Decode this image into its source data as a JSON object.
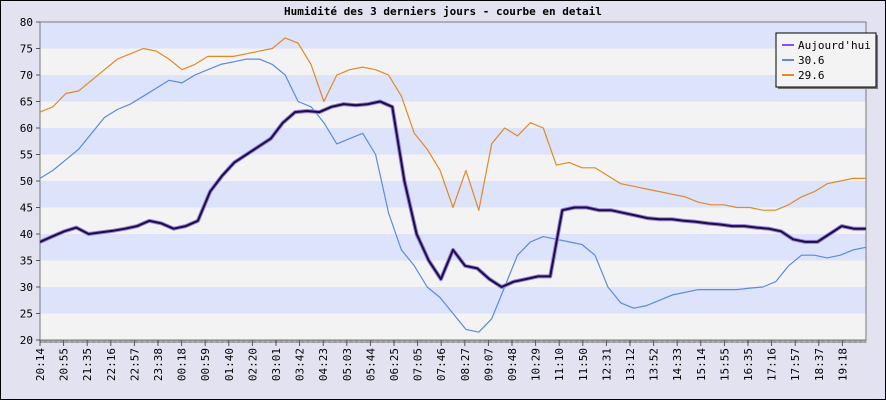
{
  "chart_data": {
    "type": "line",
    "title": "Humidité des 3 derniers jours - courbe en detail",
    "xlabel": "",
    "ylabel": "",
    "ylim": [
      20,
      80
    ],
    "yticks": [
      "20",
      "25",
      "30",
      "35",
      "40",
      "45",
      "50",
      "55",
      "60",
      "65",
      "70",
      "75",
      "80"
    ],
    "x_tick_labels": [
      "20:14",
      "20:55",
      "21:35",
      "22:16",
      "22:57",
      "23:38",
      "00:18",
      "00:59",
      "01:40",
      "02:20",
      "03:01",
      "03:42",
      "04:23",
      "05:03",
      "05:44",
      "06:25",
      "07:05",
      "07:46",
      "08:27",
      "09:07",
      "09:48",
      "10:29",
      "11:10",
      "11:50",
      "12:31",
      "13:12",
      "13:52",
      "14:33",
      "15:14",
      "15:55",
      "16:35",
      "17:16",
      "17:57",
      "18:37",
      "19:18"
    ],
    "grid": "horizontal bands",
    "legend_position": "top-right",
    "series": [
      {
        "name": "Aujourd'hui",
        "color": "#1a1040",
        "legend_color": "#8a4cf0",
        "values": [
          38.5,
          39.5,
          40.5,
          41.2,
          40.0,
          40.3,
          40.6,
          41.0,
          41.5,
          42.5,
          42.0,
          41.0,
          41.5,
          42.5,
          48.0,
          51.0,
          53.5,
          55.0,
          56.5,
          58.0,
          61.0,
          63.0,
          63.2,
          63.0,
          64.0,
          64.5,
          64.3,
          64.5,
          65.0,
          64.0,
          50.0,
          40.0,
          35.0,
          31.5,
          37.0,
          34.0,
          33.5,
          31.5,
          30.0,
          31.0,
          31.5,
          32.0,
          32.0,
          44.5,
          45.0,
          45.0,
          44.5,
          44.5,
          44.0,
          43.5,
          43.0,
          42.8,
          42.8,
          42.5,
          42.3,
          42.0,
          41.8,
          41.5,
          41.5,
          41.2,
          41.0,
          40.5,
          39.0,
          38.5,
          38.5,
          40.0,
          41.5,
          41.0,
          41.0
        ]
      },
      {
        "name": "30.6",
        "color": "#5c8ae0",
        "legend_color": "#5c8ae0",
        "values": [
          50.5,
          52.0,
          54.0,
          56.0,
          59.0,
          62.0,
          63.5,
          64.5,
          66.0,
          67.5,
          69.0,
          68.5,
          70.0,
          71.0,
          72.0,
          72.5,
          73.0,
          73.0,
          72.0,
          70.0,
          65.0,
          64.0,
          61.0,
          57.0,
          58.0,
          59.0,
          55.0,
          44.0,
          37.0,
          34.0,
          30.0,
          28.0,
          25.0,
          22.0,
          21.5,
          24.0,
          30.0,
          36.0,
          38.5,
          39.5,
          39.0,
          38.5,
          38.0,
          36.0,
          30.0,
          27.0,
          26.0,
          26.5,
          27.5,
          28.5,
          29.0,
          29.5,
          29.5,
          29.5,
          29.5,
          29.8,
          30.0,
          31.0,
          34.0,
          36.0,
          36.0,
          35.5,
          36.0,
          37.0,
          37.5
        ]
      },
      {
        "name": "29.6",
        "color": "#e08a28",
        "legend_color": "#e08a28",
        "values": [
          63.0,
          64.0,
          66.5,
          67.0,
          69.0,
          71.0,
          73.0,
          74.0,
          75.0,
          74.5,
          73.0,
          71.0,
          72.0,
          73.5,
          73.5,
          73.5,
          74.0,
          74.5,
          75.0,
          77.0,
          76.0,
          72.0,
          65.0,
          70.0,
          71.0,
          71.5,
          71.0,
          70.0,
          66.0,
          59.0,
          56.0,
          52.0,
          45.0,
          52.0,
          44.5,
          57.0,
          60.0,
          58.5,
          61.0,
          60.0,
          53.0,
          53.5,
          52.5,
          52.5,
          51.0,
          49.5,
          49.0,
          48.5,
          48.0,
          47.5,
          47.0,
          46.0,
          45.5,
          45.5,
          45.0,
          45.0,
          44.5,
          44.5,
          45.5,
          47.0,
          48.0,
          49.5,
          50.0,
          50.5,
          50.5
        ]
      }
    ]
  }
}
